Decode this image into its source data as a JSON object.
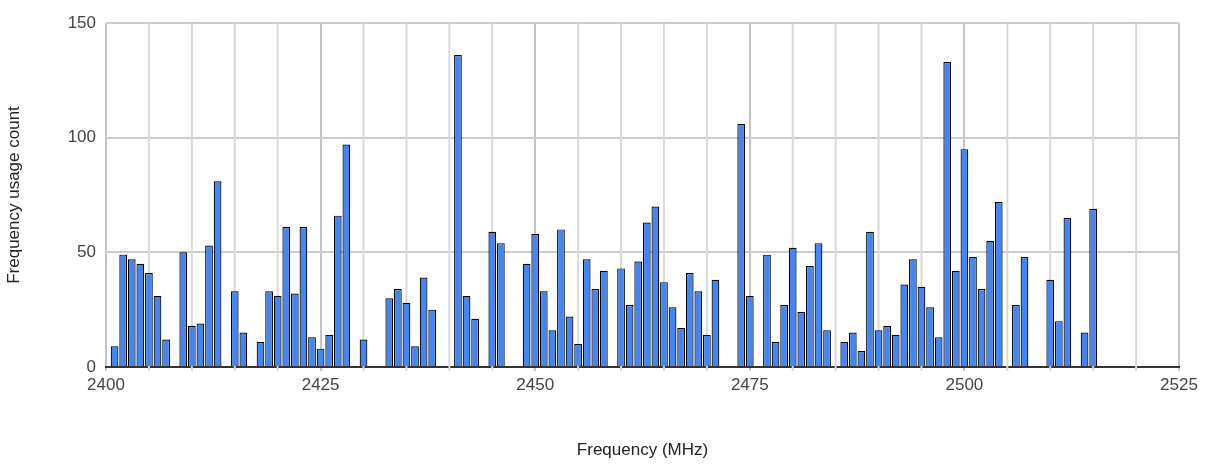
{
  "chart_data": {
    "type": "bar",
    "xlabel": "Frequency (MHz)",
    "ylabel": "Frequency usage count",
    "x": [
      2401,
      2402,
      2403,
      2404,
      2405,
      2406,
      2407,
      2409,
      2410,
      2411,
      2412,
      2413,
      2415,
      2416,
      2418,
      2419,
      2420,
      2421,
      2422,
      2423,
      2424,
      2425,
      2426,
      2427,
      2428,
      2430,
      2433,
      2434,
      2435,
      2436,
      2437,
      2438,
      2441,
      2442,
      2443,
      2445,
      2446,
      2449,
      2450,
      2451,
      2452,
      2453,
      2454,
      2455,
      2456,
      2457,
      2458,
      2460,
      2461,
      2462,
      2463,
      2464,
      2465,
      2466,
      2467,
      2468,
      2469,
      2470,
      2471,
      2474,
      2475,
      2477,
      2478,
      2479,
      2480,
      2481,
      2482,
      2483,
      2484,
      2486,
      2487,
      2488,
      2489,
      2490,
      2491,
      2492,
      2493,
      2494,
      2495,
      2496,
      2497,
      2498,
      2499,
      2500,
      2501,
      2502,
      2503,
      2504,
      2506,
      2507,
      2510,
      2511,
      2512,
      2514,
      2515
    ],
    "values": [
      9,
      49,
      47,
      45,
      41,
      31,
      12,
      50,
      18,
      19,
      53,
      81,
      33,
      15,
      11,
      33,
      31,
      61,
      32,
      61,
      13,
      8,
      14,
      66,
      97,
      12,
      30,
      34,
      28,
      9,
      39,
      25,
      136,
      31,
      21,
      59,
      54,
      45,
      58,
      33,
      16,
      60,
      22,
      10,
      47,
      34,
      42,
      43,
      27,
      46,
      63,
      70,
      37,
      26,
      17,
      41,
      33,
      14,
      38,
      106,
      31,
      49,
      11,
      27,
      52,
      24,
      44,
      54,
      16,
      11,
      15,
      7,
      59,
      16,
      18,
      14,
      36,
      47,
      35,
      26,
      13,
      133,
      42,
      95,
      48,
      34,
      55,
      72,
      27,
      48,
      38,
      20,
      65,
      15,
      69
    ],
    "color": "#4285f4",
    "xlim": [
      2400,
      2525
    ],
    "xticks": [
      2400,
      {
        "value": 2405,
        "label": null
      },
      {
        "value": 2410,
        "label": null
      },
      {
        "value": 2415,
        "label": null
      },
      {
        "value": 2420,
        "label": null
      },
      2425,
      {
        "value": 2430,
        "label": null
      },
      {
        "value": 2435,
        "label": null
      },
      {
        "value": 2440,
        "label": null
      },
      {
        "value": 2445,
        "label": null
      },
      2450,
      {
        "value": 2455,
        "label": null
      },
      {
        "value": 2460,
        "label": null
      },
      {
        "value": 2465,
        "label": null
      },
      {
        "value": 2470,
        "label": null
      },
      2475,
      {
        "value": 2480,
        "label": null
      },
      {
        "value": 2485,
        "label": null
      },
      {
        "value": 2490,
        "label": null
      },
      {
        "value": 2495,
        "label": null
      },
      2500,
      {
        "value": 2505,
        "label": null
      },
      {
        "value": 2510,
        "label": null
      },
      {
        "value": 2515,
        "label": null
      },
      {
        "value": 2520,
        "label": null
      },
      2525
    ],
    "ylim": [
      0,
      150
    ],
    "yticks": [
      0,
      50,
      100,
      150
    ],
    "grid": true
  }
}
